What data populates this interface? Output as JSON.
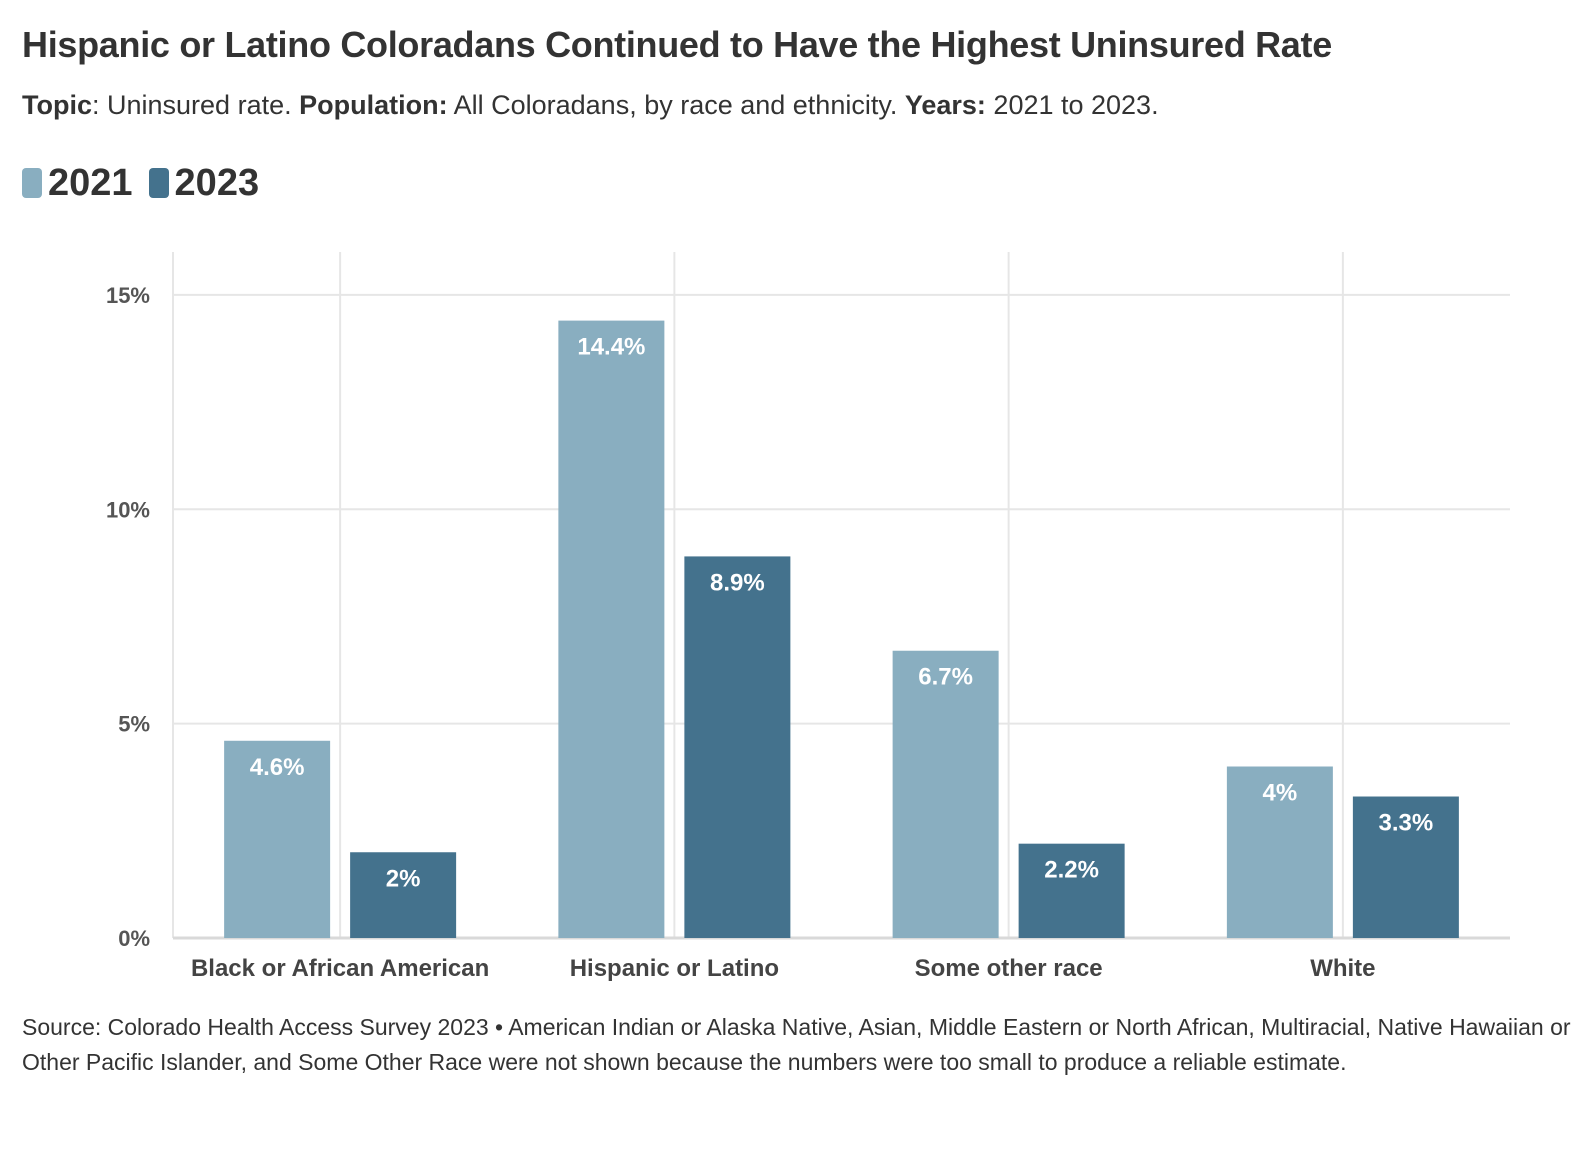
{
  "title": "Hispanic or Latino Coloradans Continued to Have the Highest Uninsured Rate",
  "subtitle": {
    "topic_label": "Topic",
    "topic_text": ": Uninsured rate. ",
    "population_label": "Population:",
    "population_text": " All Coloradans, by race and ethnicity. ",
    "years_label": "Years:",
    "years_text": " 2021 to 2023."
  },
  "legend": [
    {
      "label": "2021",
      "color": "#89aec0"
    },
    {
      "label": "2023",
      "color": "#44728d"
    }
  ],
  "chart_data": {
    "type": "bar",
    "categories": [
      "Black or African American",
      "Hispanic or Latino",
      "Some other race",
      "White"
    ],
    "series": [
      {
        "name": "2021",
        "color": "#89aec0",
        "values": [
          4.6,
          14.4,
          6.7,
          4.0
        ],
        "labels": [
          "4.6%",
          "14.4%",
          "6.7%",
          "4%"
        ]
      },
      {
        "name": "2023",
        "color": "#44728d",
        "values": [
          2.0,
          8.9,
          2.2,
          3.3
        ],
        "labels": [
          "2%",
          "8.9%",
          "2.2%",
          "3.3%"
        ]
      }
    ],
    "yticks": [
      0,
      5,
      10,
      15
    ],
    "ytick_labels": [
      "0%",
      "5%",
      "10%",
      "15%"
    ],
    "ylim": [
      0,
      16
    ],
    "grid": true,
    "legend_position": "top-left"
  },
  "source": "Source: Colorado Health Access Survey 2023 • American Indian or Alaska Native, Asian, Middle Eastern or North African, Multiracial, Native Hawaiian or Other Pacific Islander, and Some Other Race were not shown because the numbers were too small to produce a reliable estimate."
}
